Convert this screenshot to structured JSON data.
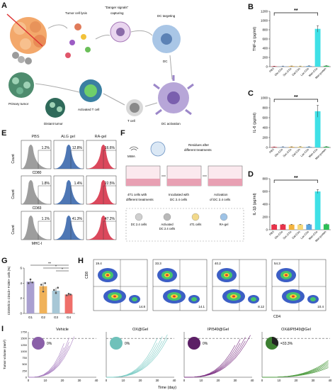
{
  "panel_letters": {
    "A": "A",
    "B": "B",
    "C": "C",
    "D": "D",
    "E": "E",
    "F": "F",
    "G": "G",
    "H": "H",
    "I": "I"
  },
  "schematic_A": {
    "tumor_cell_lysis": "Tumor cell lysis",
    "danger_signals": "\"Danger signals\"",
    "capturing": "capturing",
    "dc_targeting": "DC targeting",
    "dc": "DC",
    "dc_activation": "DC activation",
    "t_cell": "T cell",
    "activated_t_cell": "Activated T cell",
    "primary_tumor": "Primary tumor",
    "distant_tumor": "Distant tumor"
  },
  "schematic_F": {
    "mwa": "MWA",
    "residues": "Residues after",
    "residues2": "different treatments",
    "step1a": "4T1 cells with",
    "step1b": "different treatments",
    "step2a": "Incubated with",
    "step2b": "DC 2.4 cells",
    "step3a": "Activation",
    "step3b": "of DC 2.4 cells",
    "legend": [
      {
        "label": "DC 2.4 cells",
        "color": "#cfcfcf"
      },
      {
        "label": "Activated\nDC 2.4 cells",
        "color": "#b9b9b9"
      },
      {
        "label": "4T1 cells",
        "color": "#f2d98a"
      },
      {
        "label": "RA-gel",
        "color": "#9ec3e6"
      }
    ]
  },
  "panel_E": {
    "columns": [
      "PBS",
      "ALG gel",
      "RA-gel"
    ],
    "rows": [
      {
        "marker": "CD80",
        "values": [
          "1.2%",
          "12.8%",
          "16.6%"
        ]
      },
      {
        "marker": "CD83",
        "values": [
          "1.8%",
          "1.4%",
          "22.5%"
        ]
      },
      {
        "marker": "MHC-I",
        "values": [
          "1.1%",
          "41.3%",
          "47.2%"
        ]
      }
    ],
    "y_label": "Count",
    "colors": [
      "#8c8c8c",
      "#2f5fa8",
      "#d5283f"
    ]
  },
  "chart_data": [
    {
      "id": "B",
      "type": "bar",
      "categories": [
        "PBS",
        "Glu-CDs",
        "Suc-CDs",
        "Gal-CDs",
        "Lac-CDs",
        "Man-CDs",
        "Man-protein"
      ],
      "values": [
        8,
        10,
        12,
        10,
        14,
        820,
        18
      ],
      "errors": [
        3,
        3,
        3,
        3,
        4,
        70,
        5
      ],
      "colors": [
        "#e8334a",
        "#8fb3e3",
        "#f3b33d",
        "#f5d878",
        "#5aa4dd",
        "#3fe0e6",
        "#2cbf56"
      ],
      "ylabel": "TNF-α (pg/ml)",
      "ylim": [
        0,
        1200
      ],
      "yticks": [
        0,
        200,
        400,
        600,
        800,
        1000,
        1200
      ],
      "significance": "**"
    },
    {
      "id": "C",
      "type": "bar",
      "categories": [
        "PBS",
        "Glu-CDs",
        "Suc-CDs",
        "Gal-CDs",
        "Lac-CDs",
        "Man-CDs",
        "Man-protein"
      ],
      "values": [
        10,
        12,
        12,
        14,
        12,
        730,
        15
      ],
      "errors": [
        3,
        3,
        3,
        3,
        3,
        120,
        4
      ],
      "colors": [
        "#e8334a",
        "#8fb3e3",
        "#f3b33d",
        "#f5d878",
        "#5aa4dd",
        "#3fe0e6",
        "#2cbf56"
      ],
      "ylabel": "IL-6 (pg/ml)",
      "ylim": [
        0,
        1000
      ],
      "yticks": [
        0,
        200,
        400,
        600,
        800,
        1000
      ],
      "significance": "**"
    },
    {
      "id": "D",
      "type": "bar",
      "categories": [
        "PBS",
        "Glu-CDs",
        "Suc-CDs",
        "Gal-CDs",
        "Lac-CDs",
        "Man-CDs",
        "Man-protein"
      ],
      "values": [
        80,
        82,
        80,
        80,
        82,
        600,
        85
      ],
      "errors": [
        5,
        5,
        5,
        5,
        5,
        30,
        5
      ],
      "colors": [
        "#e8334a",
        "#e8334a",
        "#f3b33d",
        "#f5d878",
        "#5aa4dd",
        "#3fe0e6",
        "#2cbf56"
      ],
      "ylabel": "IL-1β (pg/ml)",
      "ylim": [
        0,
        800
      ],
      "yticks": [
        0,
        200,
        400,
        600,
        800
      ],
      "significance": "**"
    },
    {
      "id": "G",
      "type": "bar",
      "categories": [
        "G1",
        "G2",
        "G3",
        "G4"
      ],
      "values": [
        4.2,
        3.6,
        3.0,
        2.5
      ],
      "errors": [
        0.2,
        0.5,
        0.4,
        0.2
      ],
      "points": [
        [
          4.0,
          4.5,
          4.1
        ],
        [
          3.8,
          2.9,
          4.0
        ],
        [
          3.1,
          2.7,
          3.4
        ],
        [
          2.4,
          2.6,
          2.5
        ]
      ],
      "colors": [
        "#a99fd0",
        "#f0b25a",
        "#a7c7d6",
        "#ef6f6a"
      ],
      "ylabel": "CD206hi in CD11b+ F4/80+ cells (%)",
      "ylim": [
        0,
        6
      ],
      "yticks": [
        0,
        2,
        4,
        6
      ],
      "significance": [
        "**",
        "*",
        "*"
      ]
    }
  ],
  "panel_H": {
    "values": [
      {
        "q1": "19.4",
        "q4": "14.8"
      },
      {
        "q1": "33.3",
        "q4": "14.1"
      },
      {
        "q1": "40.2",
        "q4": "8.12"
      },
      {
        "q1": "54.3",
        "q4": "10.4"
      }
    ],
    "xlabel": "CD4",
    "ylabel": "CD8"
  },
  "panel_I": {
    "ylabel": "Tumor volume (mm³)",
    "xlabel": "Time (day)",
    "yticks": [
      0,
      250,
      500,
      750,
      1000,
      1250,
      1500,
      1750
    ],
    "xticks": [
      0,
      10,
      20,
      30,
      40
    ],
    "threshold": 1500,
    "groups": [
      {
        "title": "Vehicle",
        "percent": "0%",
        "color": "#a97fc1",
        "pie": "#8a5fa8",
        "end": [
          22,
          28
        ]
      },
      {
        "title": "OX@Gel",
        "percent": "0%",
        "color": "#79cbc4",
        "pie": "#6fc1ba",
        "end": [
          30,
          38
        ]
      },
      {
        "title": "IPI549@Gel",
        "percent": "0%",
        "color": "#7b2f82",
        "pie": "#5c1f66",
        "end": [
          32,
          40
        ]
      },
      {
        "title": "OX&IPI549@Gel",
        "percent": "=33.3%",
        "color": "#4a9a3c",
        "pie": "#3c7f31",
        "end": [
          40,
          40
        ]
      }
    ]
  }
}
